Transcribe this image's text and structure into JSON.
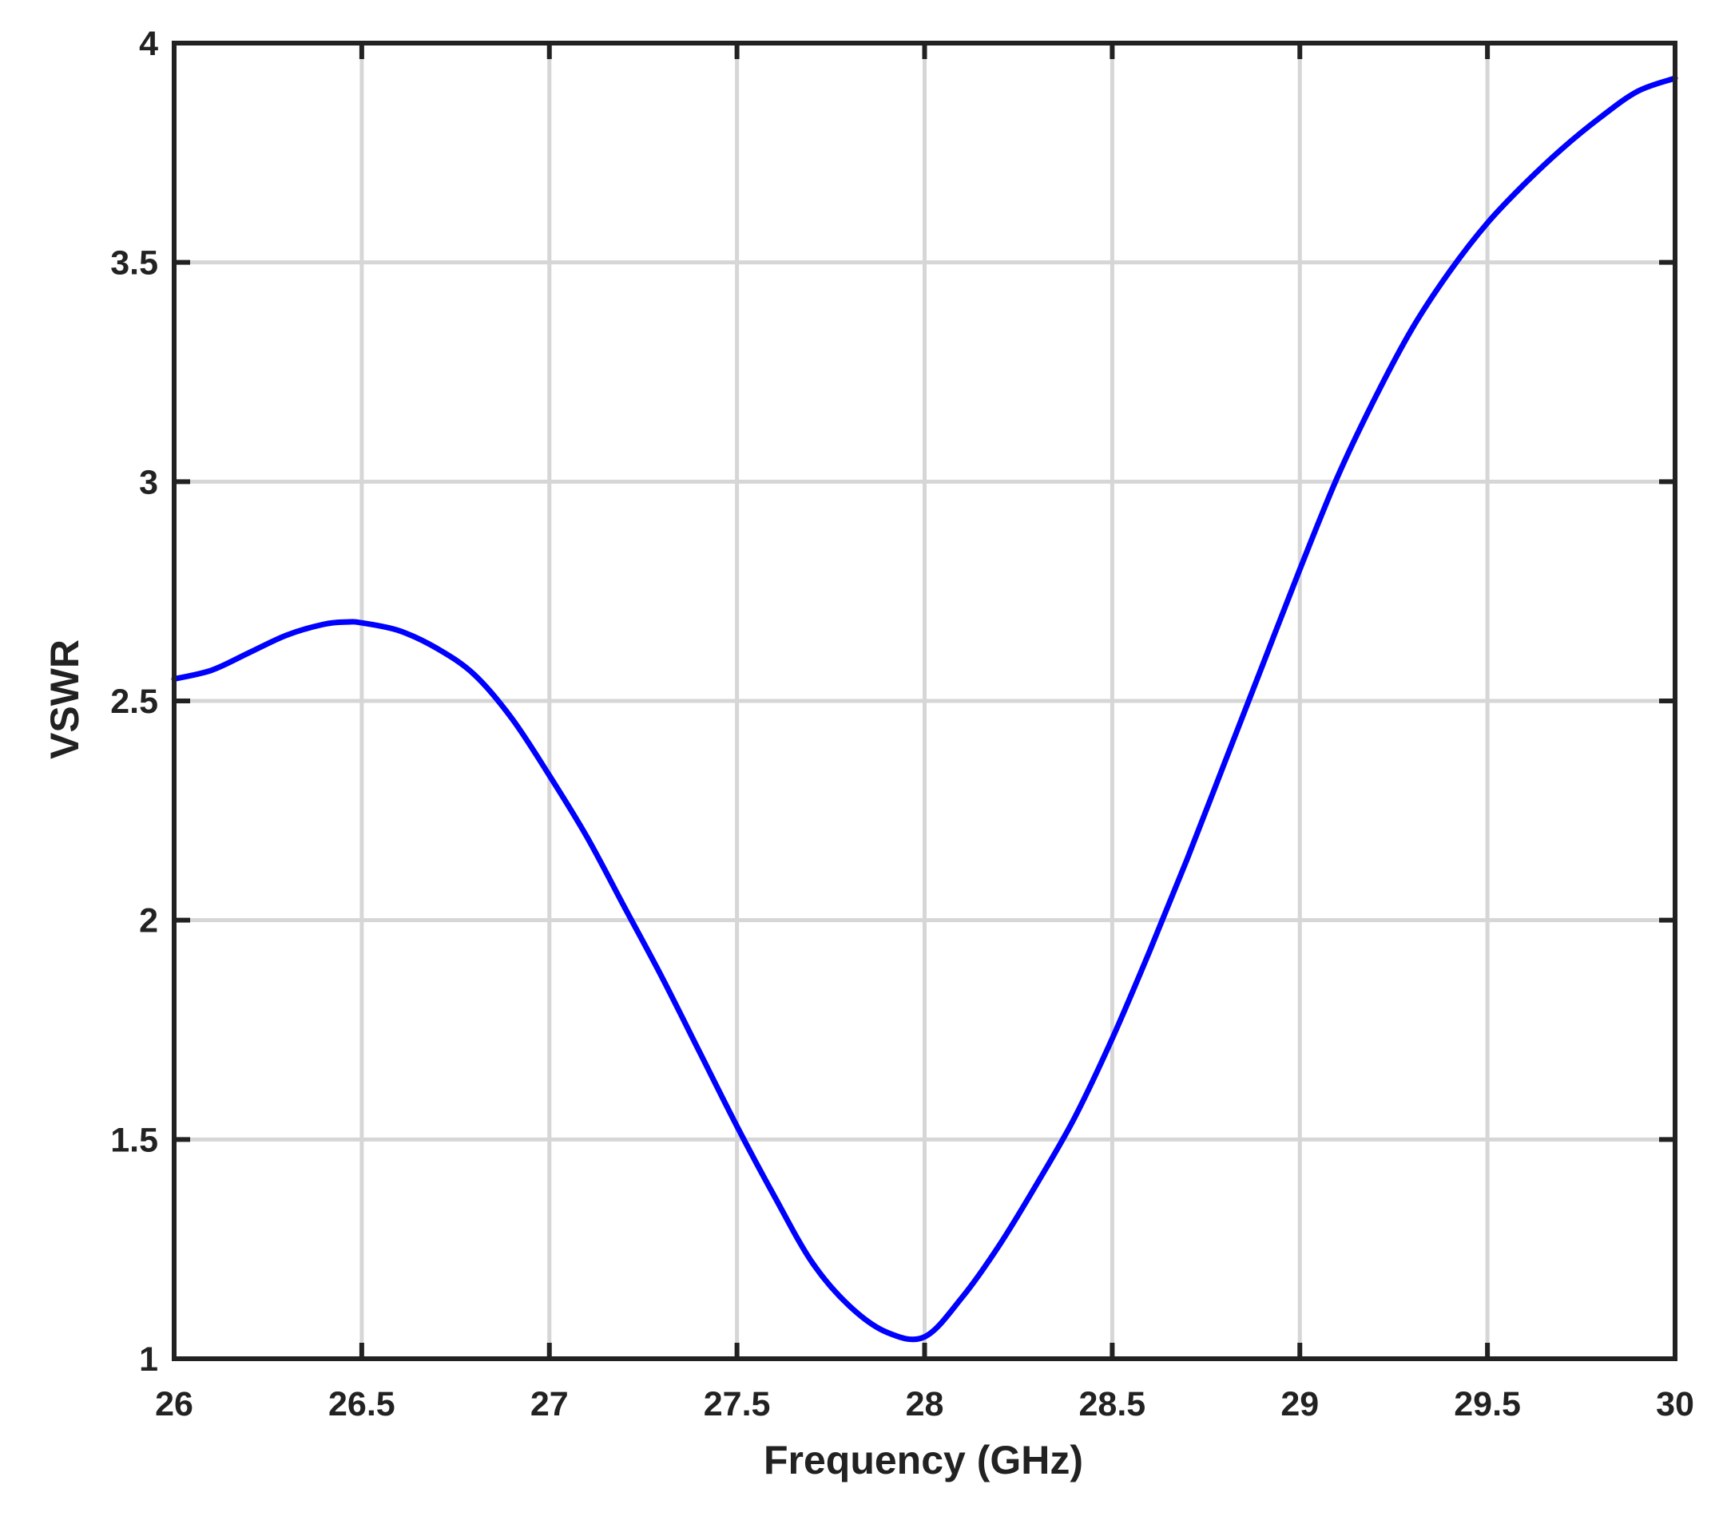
{
  "chart_data": {
    "type": "line",
    "title": "",
    "xlabel": "Frequency (GHz)",
    "ylabel": "VSWR",
    "xlim": [
      26,
      30
    ],
    "ylim": [
      1,
      4
    ],
    "xticks": [
      26,
      26.5,
      27,
      27.5,
      28,
      28.5,
      29,
      29.5,
      30
    ],
    "yticks": [
      1,
      1.5,
      2,
      2.5,
      3,
      3.5,
      4
    ],
    "xtick_labels": [
      "26",
      "26.5",
      "27",
      "27.5",
      "28",
      "28.5",
      "29",
      "29.5",
      "30"
    ],
    "ytick_labels": [
      "1",
      "1.5",
      "2",
      "2.5",
      "3",
      "3.5",
      "4"
    ],
    "grid": true,
    "legend": "none",
    "series": [
      {
        "color": "#0000ff",
        "x": [
          26.0,
          26.1,
          26.2,
          26.3,
          26.4,
          26.46,
          26.5,
          26.6,
          26.7,
          26.8,
          26.9,
          27.0,
          27.1,
          27.2,
          27.3,
          27.4,
          27.5,
          27.6,
          27.7,
          27.8,
          27.9,
          28.0,
          28.1,
          28.2,
          28.3,
          28.4,
          28.5,
          28.6,
          28.7,
          28.8,
          28.9,
          29.0,
          29.1,
          29.2,
          29.3,
          29.4,
          29.5,
          29.6,
          29.7,
          29.8,
          29.9,
          30.0
        ],
        "y": [
          2.55,
          2.57,
          2.61,
          2.65,
          2.675,
          2.68,
          2.678,
          2.66,
          2.62,
          2.56,
          2.46,
          2.33,
          2.19,
          2.03,
          1.87,
          1.7,
          1.53,
          1.37,
          1.22,
          1.12,
          1.06,
          1.05,
          1.14,
          1.26,
          1.4,
          1.55,
          1.73,
          1.93,
          2.14,
          2.36,
          2.58,
          2.8,
          3.01,
          3.19,
          3.35,
          3.48,
          3.59,
          3.68,
          3.76,
          3.83,
          3.89,
          3.92
        ]
      }
    ]
  }
}
